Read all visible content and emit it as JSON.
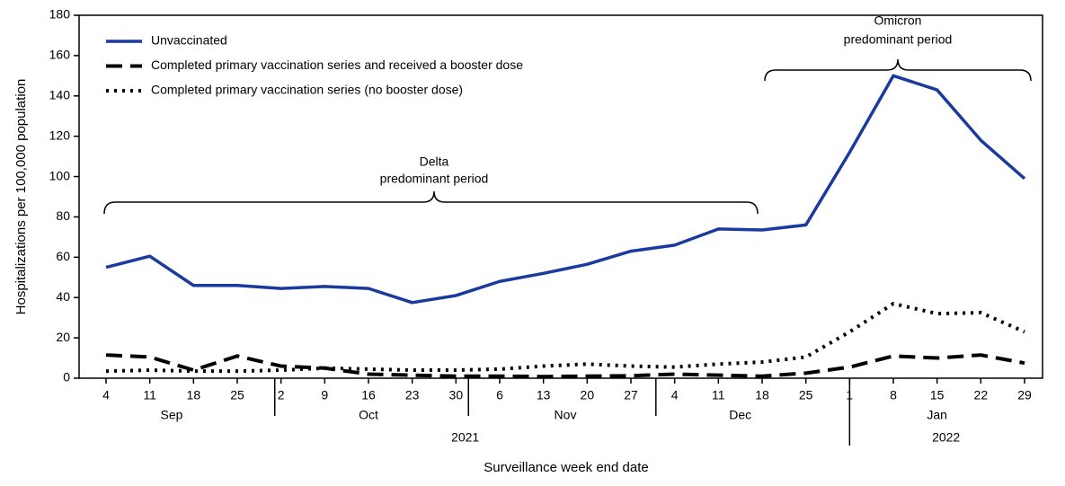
{
  "chart_data": {
    "type": "line",
    "y_label": "Hospitalizations per 100,000 population",
    "x_label": "Surveillance week end date",
    "categories": [
      "4",
      "11",
      "18",
      "25",
      "2",
      "9",
      "16",
      "23",
      "30",
      "6",
      "13",
      "20",
      "27",
      "4",
      "11",
      "18",
      "25",
      "1",
      "8",
      "15",
      "22",
      "29"
    ],
    "months": [
      "Sep",
      "Oct",
      "Nov",
      "Dec",
      "Jan"
    ],
    "years": [
      "2021",
      "2022"
    ],
    "ylim": [
      0,
      180
    ],
    "yticks": [
      0,
      20,
      40,
      60,
      80,
      100,
      120,
      140,
      160,
      180
    ],
    "legend": "top-left",
    "series": [
      {
        "name": "Unvaccinated",
        "color": "#1b3a9e",
        "style": "solid",
        "values": [
          55,
          60.5,
          46,
          46,
          44.5,
          45.5,
          44.5,
          37.5,
          41,
          48,
          52,
          56.5,
          63,
          66,
          74,
          73.5,
          76,
          112,
          150,
          143,
          118,
          99
        ]
      },
      {
        "name": "Completed primary vaccination series and received a booster dose",
        "color": "#000000",
        "style": "dashed",
        "values": [
          11.5,
          10.5,
          4,
          11,
          6,
          5,
          2,
          1.5,
          1,
          1,
          0.8,
          1,
          1.2,
          2,
          1.5,
          1,
          2.5,
          5.5,
          11,
          10,
          11.5,
          7.5
        ]
      },
      {
        "name": "Completed primary vaccination series (no booster dose)",
        "color": "#000000",
        "style": "dotted",
        "values": [
          3.5,
          4,
          3.5,
          3.5,
          4,
          5,
          4.5,
          4,
          4,
          4.5,
          6,
          7,
          6,
          5.5,
          7,
          8,
          10.5,
          23,
          37,
          32,
          32.5,
          23
        ]
      }
    ],
    "annotations": [
      {
        "lines": [
          "Delta",
          "predominant period"
        ]
      },
      {
        "lines": [
          "Omicron",
          "predominant period"
        ]
      }
    ]
  }
}
